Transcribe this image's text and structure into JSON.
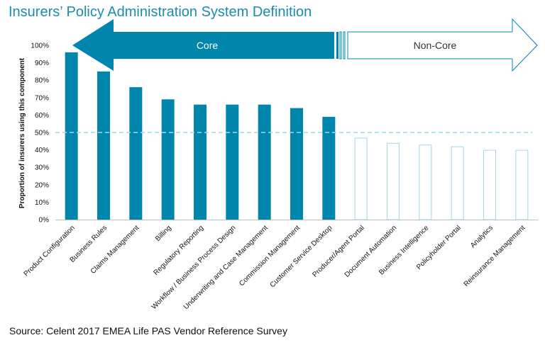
{
  "title": "Insurers’ Policy Administration System Definition",
  "source": "Source: Celent 2017 EMEA Life PAS Vendor Reference Survey",
  "colors": {
    "core": "#0086ad",
    "noncore": "#9fd8e6",
    "threshold": "#9fd8e6",
    "title": "#1a8dae"
  },
  "chart_data": {
    "type": "bar",
    "ylabel": "Proportion of insurers using this component",
    "ylim": [
      0,
      100
    ],
    "yticks": [
      "0%",
      "10%",
      "20%",
      "30%",
      "40%",
      "50%",
      "60%",
      "70%",
      "80%",
      "90%",
      "100%"
    ],
    "threshold": 50,
    "categories": [
      "Product Configuration",
      "Business Rules",
      "Claims Management",
      "Billing",
      "Regulatory Reporting",
      "Workflow / Business Process Design",
      "Underwriting and Case Management",
      "Commission Management",
      "Customer Service Desktop",
      "Producer/Agent Portal",
      "Document Automation",
      "Business Intelligence",
      "Policyholder Portal",
      "Analytics",
      "Reinsurance Management"
    ],
    "values": [
      96,
      85,
      76,
      69,
      66,
      66,
      66,
      64,
      59,
      47,
      44,
      43,
      42,
      40,
      40
    ],
    "groups": [
      "core",
      "core",
      "core",
      "core",
      "core",
      "core",
      "core",
      "core",
      "core",
      "noncore",
      "noncore",
      "noncore",
      "noncore",
      "noncore",
      "noncore"
    ],
    "arrows": {
      "core_label": "Core",
      "noncore_label": "Non-Core"
    }
  }
}
